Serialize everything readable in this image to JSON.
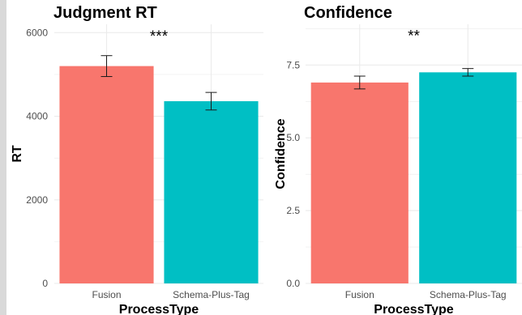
{
  "chart_data": [
    {
      "type": "bar",
      "title": "Judgment RT",
      "xlabel": "ProcessType",
      "ylabel": "RT",
      "categories": [
        "Fusion",
        "Schema-Plus-Tag"
      ],
      "values": [
        5200,
        4360
      ],
      "error_low": [
        4950,
        4150
      ],
      "error_high": [
        5450,
        4570
      ],
      "colors": [
        "#f8766d",
        "#00bfc4"
      ],
      "ylim": [
        0,
        6200
      ],
      "yticks": [
        0,
        2000,
        4000,
        6000
      ],
      "ytick_labels": [
        "0",
        "2000",
        "4000",
        "6000"
      ],
      "significance": "***",
      "significance_y": 5950,
      "grid": true,
      "legend": "none"
    },
    {
      "type": "bar",
      "title": "Confidence",
      "xlabel": "ProcessType",
      "ylabel": "Confidence",
      "categories": [
        "Fusion",
        "Schema-Plus-Tag"
      ],
      "values": [
        6.9,
        7.25
      ],
      "error_low": [
        6.68,
        7.12
      ],
      "error_high": [
        7.12,
        7.38
      ],
      "colors": [
        "#f8766d",
        "#00bfc4"
      ],
      "ylim": [
        0,
        8.9
      ],
      "yticks": [
        0,
        2.5,
        5,
        7.5
      ],
      "ytick_labels": [
        "0.0",
        "2.5",
        "5.0",
        "7.5"
      ],
      "significance": "**",
      "significance_y": 8.55,
      "grid": true,
      "legend": "none"
    }
  ]
}
